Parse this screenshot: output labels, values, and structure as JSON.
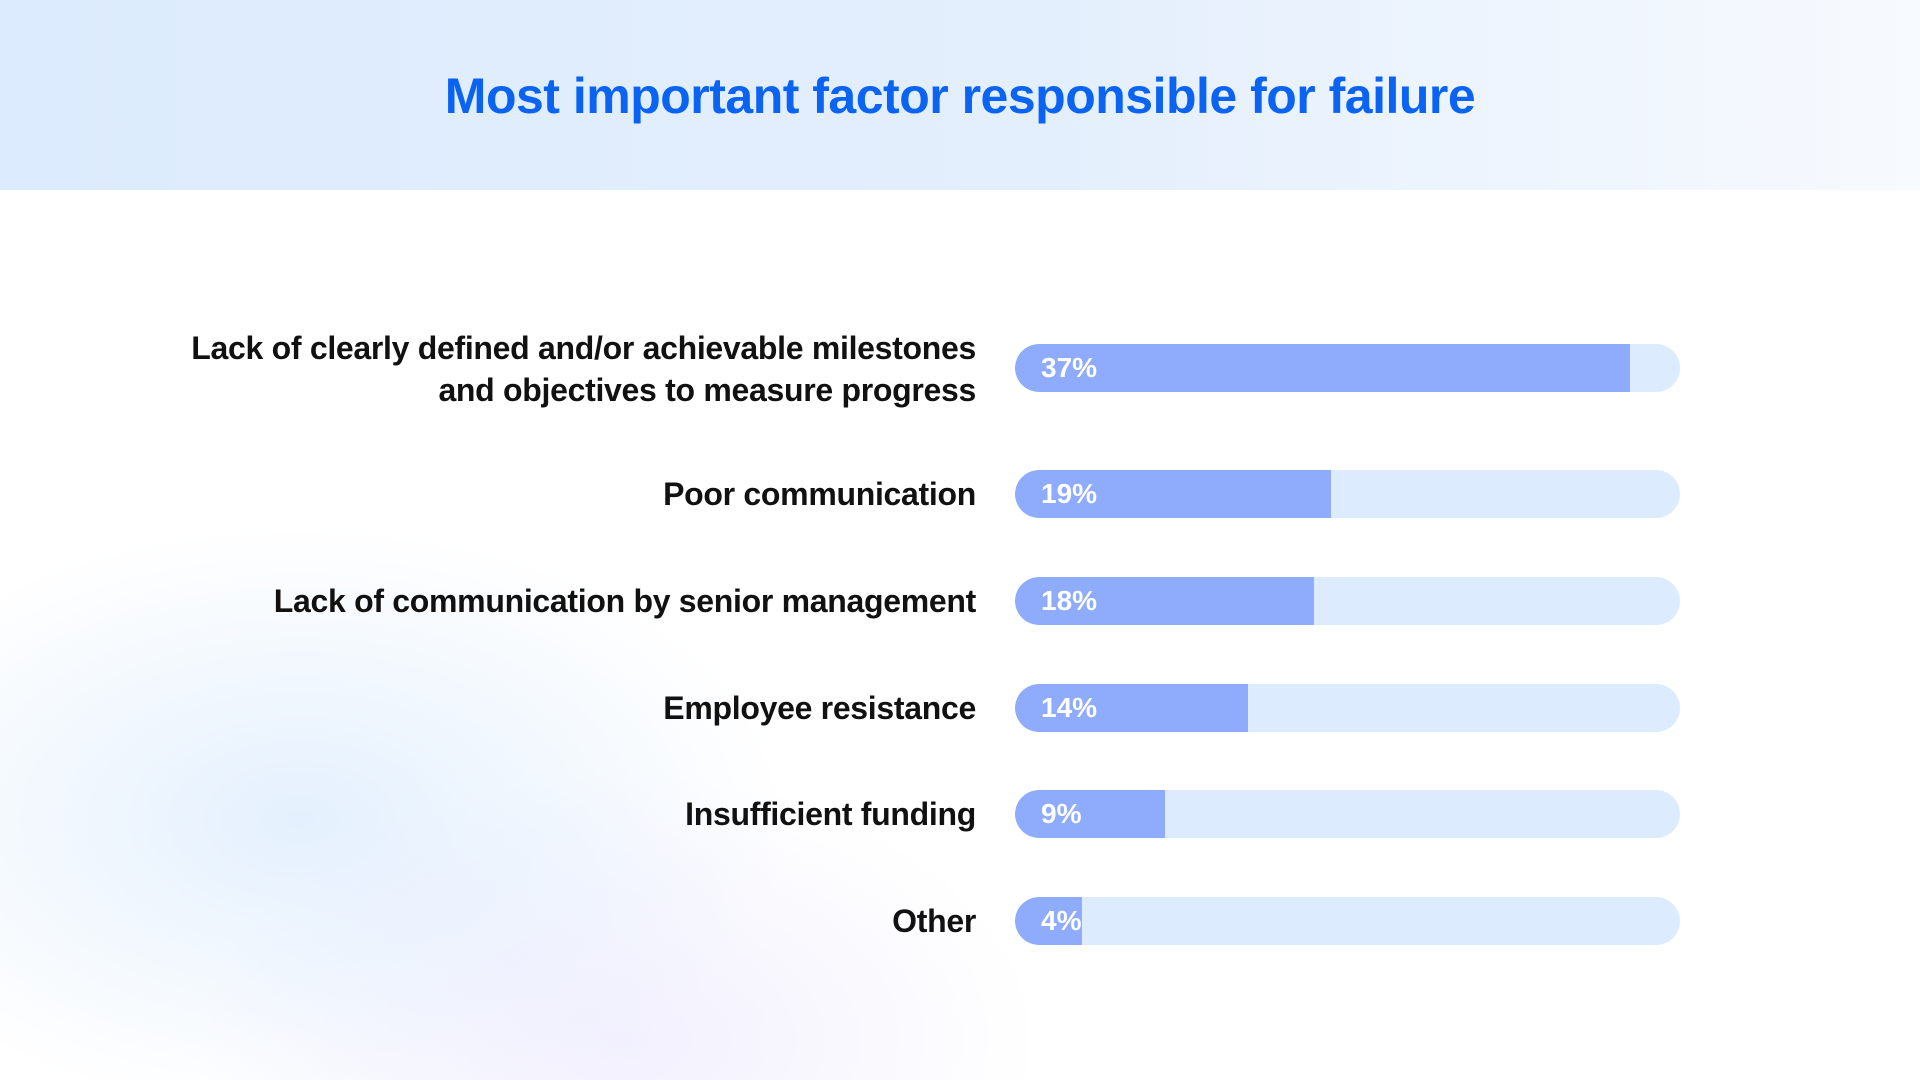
{
  "chart_data": {
    "type": "bar",
    "orientation": "horizontal",
    "title": "Most important factor responsible for failure",
    "categories": [
      "Lack of clearly defined and/or achievable milestones and objectives to measure progress",
      "Poor communication",
      "Lack of communication by senior management",
      "Employee resistance",
      "Insufficient funding",
      "Other"
    ],
    "values": [
      37,
      19,
      18,
      14,
      9,
      4
    ],
    "value_labels": [
      "37%",
      "19%",
      "18%",
      "14%",
      "9%",
      "4%"
    ],
    "xlim": [
      0,
      40
    ],
    "grid": false,
    "legend": "none"
  },
  "colors": {
    "title": "#0b63f2",
    "bar_fill": "#8fabfb",
    "bar_track": "#dcebfd",
    "label_text": "#111111",
    "value_text": "#ffffff"
  }
}
